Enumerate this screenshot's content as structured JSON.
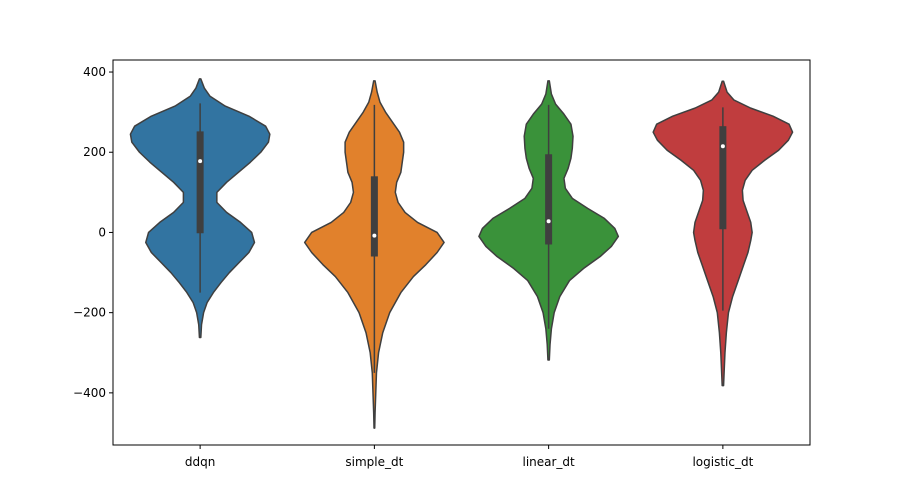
{
  "chart_data": {
    "type": "violin",
    "title": "",
    "xlabel": "",
    "ylabel": "",
    "ylim": [
      -530,
      430
    ],
    "yticks": [
      -400,
      -200,
      0,
      200,
      400
    ],
    "ytick_labels": [
      "−400",
      "−200",
      "0",
      "200",
      "400"
    ],
    "categories": [
      "ddqn",
      "simple_dt",
      "linear_dt",
      "logistic_dt"
    ],
    "colors": [
      "#3274a1",
      "#e1812c",
      "#3a923a",
      "#c03d3e"
    ],
    "series": [
      {
        "min": -262,
        "max": 383,
        "q1": -2,
        "median": 178,
        "q3": 252,
        "whisker_low": -150,
        "whisker_high": 322,
        "profile": [
          [
            -262,
            0.01
          ],
          [
            -230,
            0.02
          ],
          [
            -200,
            0.05
          ],
          [
            -175,
            0.1
          ],
          [
            -150,
            0.19
          ],
          [
            -125,
            0.3
          ],
          [
            -100,
            0.42
          ],
          [
            -75,
            0.56
          ],
          [
            -50,
            0.7
          ],
          [
            -25,
            0.78
          ],
          [
            0,
            0.74
          ],
          [
            25,
            0.58
          ],
          [
            50,
            0.38
          ],
          [
            75,
            0.24
          ],
          [
            100,
            0.24
          ],
          [
            125,
            0.38
          ],
          [
            150,
            0.55
          ],
          [
            175,
            0.72
          ],
          [
            200,
            0.87
          ],
          [
            225,
            0.98
          ],
          [
            245,
            1.0
          ],
          [
            265,
            0.94
          ],
          [
            290,
            0.7
          ],
          [
            315,
            0.36
          ],
          [
            340,
            0.14
          ],
          [
            360,
            0.06
          ],
          [
            383,
            0.01
          ]
        ]
      },
      {
        "min": -488,
        "max": 378,
        "q1": -60,
        "median": -8,
        "q3": 140,
        "whisker_low": -350,
        "whisker_high": 318,
        "profile": [
          [
            -488,
            0.005
          ],
          [
            -450,
            0.01
          ],
          [
            -400,
            0.02
          ],
          [
            -350,
            0.03
          ],
          [
            -300,
            0.06
          ],
          [
            -250,
            0.12
          ],
          [
            -200,
            0.22
          ],
          [
            -150,
            0.38
          ],
          [
            -110,
            0.56
          ],
          [
            -80,
            0.74
          ],
          [
            -50,
            0.9
          ],
          [
            -25,
            1.0
          ],
          [
            0,
            0.9
          ],
          [
            25,
            0.62
          ],
          [
            50,
            0.44
          ],
          [
            75,
            0.34
          ],
          [
            100,
            0.3
          ],
          [
            125,
            0.32
          ],
          [
            150,
            0.38
          ],
          [
            175,
            0.4
          ],
          [
            200,
            0.42
          ],
          [
            225,
            0.42
          ],
          [
            250,
            0.36
          ],
          [
            275,
            0.26
          ],
          [
            300,
            0.16
          ],
          [
            325,
            0.08
          ],
          [
            350,
            0.04
          ],
          [
            378,
            0.01
          ]
        ]
      },
      {
        "min": -318,
        "max": 378,
        "q1": -30,
        "median": 28,
        "q3": 195,
        "whisker_low": -240,
        "whisker_high": 318,
        "profile": [
          [
            -318,
            0.01
          ],
          [
            -280,
            0.02
          ],
          [
            -240,
            0.04
          ],
          [
            -200,
            0.08
          ],
          [
            -160,
            0.16
          ],
          [
            -120,
            0.3
          ],
          [
            -90,
            0.5
          ],
          [
            -60,
            0.74
          ],
          [
            -35,
            0.9
          ],
          [
            -10,
            1.0
          ],
          [
            10,
            0.95
          ],
          [
            35,
            0.8
          ],
          [
            60,
            0.56
          ],
          [
            85,
            0.34
          ],
          [
            110,
            0.24
          ],
          [
            135,
            0.22
          ],
          [
            160,
            0.28
          ],
          [
            185,
            0.32
          ],
          [
            210,
            0.34
          ],
          [
            240,
            0.35
          ],
          [
            270,
            0.32
          ],
          [
            295,
            0.22
          ],
          [
            320,
            0.1
          ],
          [
            345,
            0.04
          ],
          [
            378,
            0.01
          ]
        ]
      },
      {
        "min": -382,
        "max": 377,
        "q1": 8,
        "median": 215,
        "q3": 265,
        "whisker_low": -195,
        "whisker_high": 312,
        "profile": [
          [
            -382,
            0.01
          ],
          [
            -340,
            0.02
          ],
          [
            -300,
            0.03
          ],
          [
            -250,
            0.05
          ],
          [
            -200,
            0.08
          ],
          [
            -160,
            0.14
          ],
          [
            -120,
            0.22
          ],
          [
            -80,
            0.3
          ],
          [
            -50,
            0.36
          ],
          [
            -20,
            0.4
          ],
          [
            0,
            0.42
          ],
          [
            25,
            0.4
          ],
          [
            55,
            0.34
          ],
          [
            80,
            0.29
          ],
          [
            105,
            0.28
          ],
          [
            130,
            0.32
          ],
          [
            155,
            0.42
          ],
          [
            180,
            0.6
          ],
          [
            205,
            0.8
          ],
          [
            230,
            0.94
          ],
          [
            250,
            1.0
          ],
          [
            270,
            0.95
          ],
          [
            290,
            0.72
          ],
          [
            310,
            0.4
          ],
          [
            330,
            0.16
          ],
          [
            350,
            0.06
          ],
          [
            377,
            0.01
          ]
        ]
      }
    ]
  }
}
